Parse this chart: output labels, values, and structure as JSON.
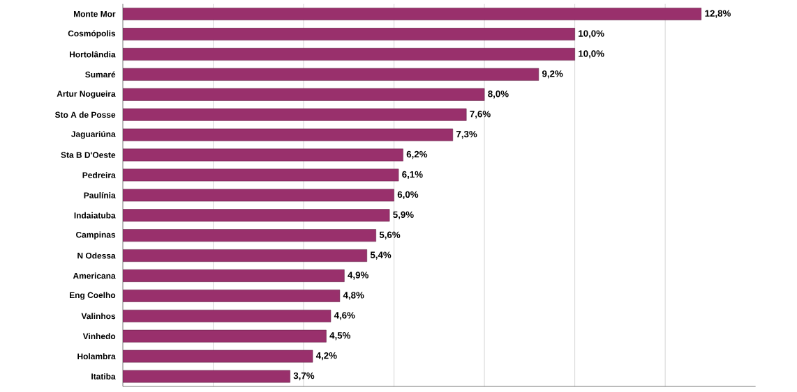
{
  "chart_data": {
    "type": "bar",
    "orientation": "horizontal",
    "categories": [
      "Monte Mor",
      "Cosmópolis",
      "Hortolândia",
      "Sumaré",
      "Artur Nogueira",
      "Sto A de Posse",
      "Jaguariúna",
      "Sta B D'Oeste",
      "Pedreira",
      "Paulínia",
      "Indaiatuba",
      "Campinas",
      "N Odessa",
      "Americana",
      "Eng Coelho",
      "Valinhos",
      "Vinhedo",
      "Holambra",
      "Itatiba"
    ],
    "values": [
      12.8,
      10.0,
      10.0,
      9.2,
      8.0,
      7.6,
      7.3,
      6.2,
      6.1,
      6.0,
      5.9,
      5.6,
      5.4,
      4.9,
      4.8,
      4.6,
      4.5,
      4.2,
      3.7
    ],
    "value_labels": [
      "12,8%",
      "10,0%",
      "10,0%",
      "9,2%",
      "8,0%",
      "7,6%",
      "7,3%",
      "6,2%",
      "6,1%",
      "6,0%",
      "5,9%",
      "5,6%",
      "5,4%",
      "4,9%",
      "4,8%",
      "4,6%",
      "4,5%",
      "4,2%",
      "3,7%"
    ],
    "color": "#99306c",
    "xlim": [
      0,
      14
    ],
    "xticks": [
      {
        "value": 2,
        "label": null
      },
      {
        "value": 4,
        "label": null
      },
      {
        "value": 6,
        "label": null
      },
      {
        "value": 8,
        "label": null
      },
      {
        "value": 10,
        "label": null
      },
      {
        "value": 12,
        "label": null
      }
    ],
    "grid": "x",
    "tick_labels": "y"
  }
}
